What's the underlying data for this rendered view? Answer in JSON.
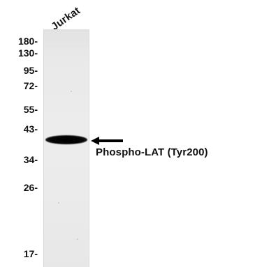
{
  "lane": {
    "label": "Jurkat"
  },
  "markers": [
    {
      "label": "180-",
      "kda": 180
    },
    {
      "label": "130-",
      "kda": 130
    },
    {
      "label": "95-",
      "kda": 95
    },
    {
      "label": "72-",
      "kda": 72
    },
    {
      "label": "55-",
      "kda": 55
    },
    {
      "label": "43-",
      "kda": 43
    },
    {
      "label": "34-",
      "kda": 34
    },
    {
      "label": "26-",
      "kda": 26
    },
    {
      "label": "17-",
      "kda": 17
    }
  ],
  "band": {
    "label": "Phospho-LAT (Tyr200)",
    "arrow_icon": "left-arrow-icon"
  },
  "colors": {
    "band": "#000000",
    "membrane": "#eaeaea",
    "text": "#111111"
  }
}
